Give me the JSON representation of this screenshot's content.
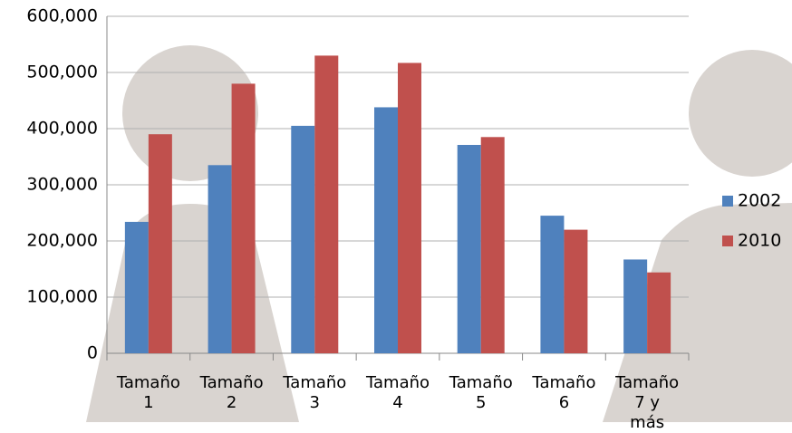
{
  "chart_data": {
    "type": "bar",
    "categories": [
      "Tamaño 1",
      "Tamaño 2",
      "Tamaño 3",
      "Tamaño 4",
      "Tamaño 5",
      "Tamaño 6",
      "Tamaño 7 y más"
    ],
    "series": [
      {
        "name": "2002",
        "color": "#4f81bd",
        "values": [
          234000,
          335000,
          405000,
          438000,
          371000,
          245000,
          167000
        ]
      },
      {
        "name": "2010",
        "color": "#c0504d",
        "values": [
          390000,
          480000,
          530000,
          517000,
          385000,
          220000,
          144000
        ]
      }
    ],
    "ylim": [
      0,
      600000
    ],
    "yticks": [
      0,
      {
        "value": 100000,
        "label": "100,000"
      },
      {
        "value": 200000,
        "label": "200,000"
      },
      {
        "value": 300000,
        "label": "300,000"
      },
      {
        "value": 400000,
        "label": "400,000"
      },
      {
        "value": 500000,
        "label": "500,000"
      },
      {
        "value": 600000,
        "label": "600,000"
      }
    ],
    "grid": true,
    "legend": "right"
  }
}
